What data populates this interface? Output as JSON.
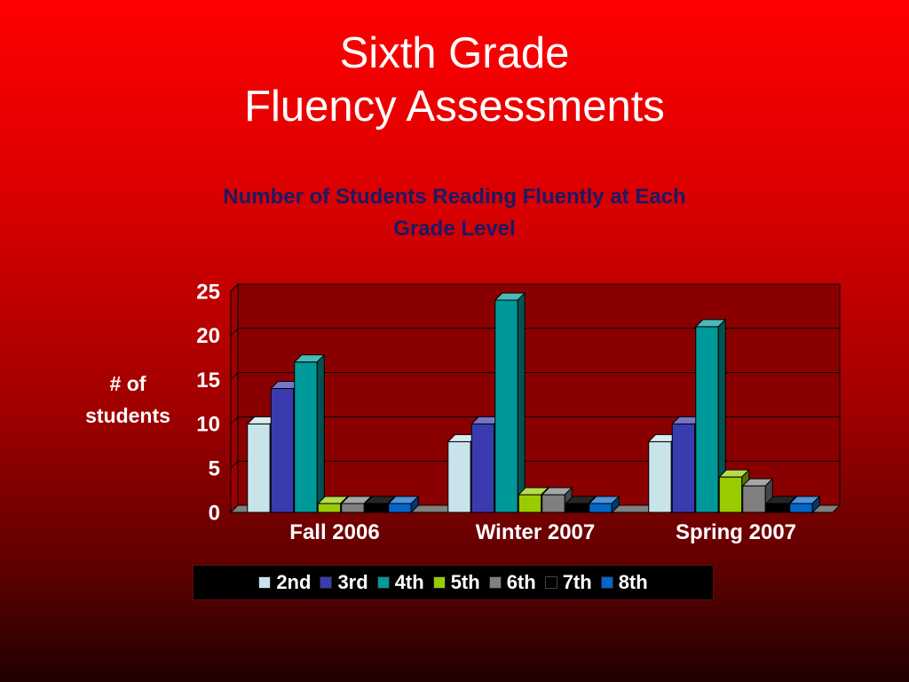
{
  "slide": {
    "title_line1": "Sixth Grade",
    "title_line2": "Fluency Assessments"
  },
  "chart_data": {
    "type": "bar",
    "title_line1": "Number of Students Reading Fluently at Each",
    "title_line2": "Grade Level",
    "ylabel_line1": "# of",
    "ylabel_line2": "students",
    "xlabel": "",
    "categories": [
      "Fall 2006",
      "Winter 2007",
      "Spring 2007"
    ],
    "ylim": [
      0,
      25
    ],
    "yticks": [
      0,
      5,
      10,
      15,
      20,
      25
    ],
    "grid": true,
    "legend_position": "bottom",
    "series": [
      {
        "name": "2nd",
        "color": "#c8e4ea",
        "values": [
          10,
          8,
          8
        ]
      },
      {
        "name": "3rd",
        "color": "#3b3bb0",
        "values": [
          14,
          10,
          10
        ]
      },
      {
        "name": "4th",
        "color": "#009999",
        "values": [
          17,
          24,
          21
        ]
      },
      {
        "name": "5th",
        "color": "#99cc00",
        "values": [
          1,
          2,
          4
        ]
      },
      {
        "name": "6th",
        "color": "#808080",
        "values": [
          1,
          2,
          3
        ]
      },
      {
        "name": "7th",
        "color": "#000000",
        "values": [
          1,
          1,
          1
        ]
      },
      {
        "name": "8th",
        "color": "#0066cc",
        "values": [
          1,
          1,
          1
        ]
      }
    ]
  }
}
